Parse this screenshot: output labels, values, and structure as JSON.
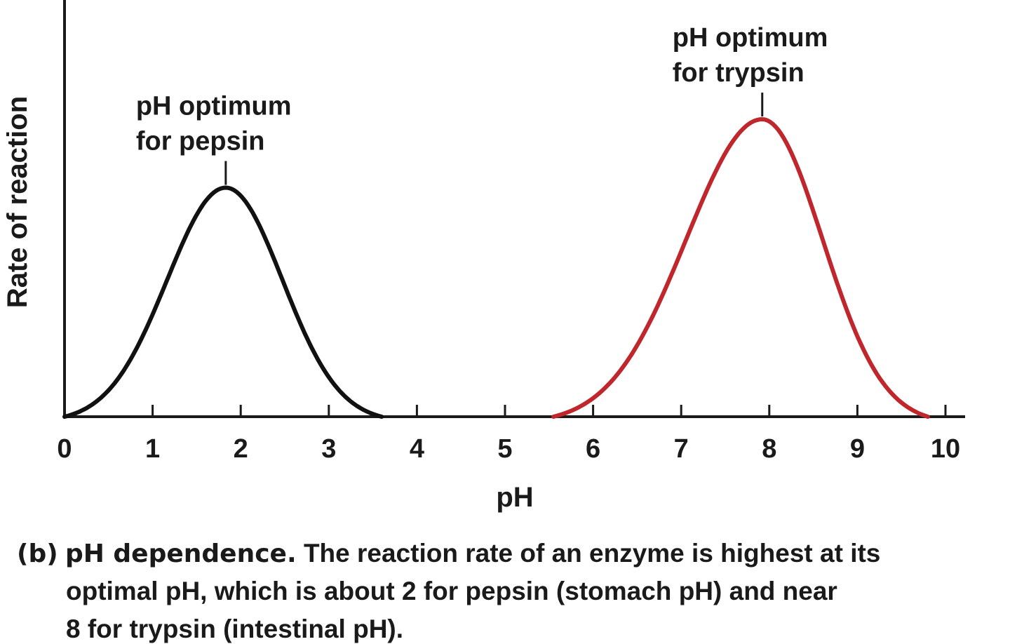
{
  "chart_data": {
    "type": "line",
    "title": "",
    "xlabel": "pH",
    "ylabel": "Rate of reaction",
    "xlim": [
      0,
      10
    ],
    "ylim": [
      0,
      1
    ],
    "xticks": [
      "0",
      "1",
      "2",
      "3",
      "4",
      "5",
      "6",
      "7",
      "8",
      "9",
      "10"
    ],
    "yticks": [],
    "grid": false,
    "series": [
      {
        "name": "pepsin",
        "color": "#111111",
        "optimum_ph": 1.83,
        "peak_rate": 0.77,
        "x_range": [
          0.0,
          3.6
        ],
        "x": [
          0.0,
          0.25,
          0.5,
          0.75,
          1.0,
          1.25,
          1.5,
          1.83,
          2.0,
          2.25,
          2.5,
          2.75,
          3.0,
          3.25,
          3.5,
          3.6
        ],
        "y": [
          0.0,
          0.03,
          0.1,
          0.23,
          0.39,
          0.56,
          0.7,
          0.77,
          0.75,
          0.67,
          0.53,
          0.35,
          0.19,
          0.07,
          0.01,
          0.0
        ]
      },
      {
        "name": "trypsin",
        "color": "#c0272d",
        "optimum_ph": 7.92,
        "peak_rate": 1.0,
        "x_range": [
          5.55,
          9.8
        ],
        "x": [
          5.55,
          6.0,
          6.5,
          7.0,
          7.5,
          7.92,
          8.25,
          8.5,
          8.75,
          9.0,
          9.25,
          9.5,
          9.8
        ],
        "y": [
          0.0,
          0.08,
          0.3,
          0.61,
          0.88,
          1.0,
          0.95,
          0.84,
          0.66,
          0.44,
          0.23,
          0.08,
          0.0
        ]
      }
    ],
    "annotations": [
      {
        "series": "pepsin",
        "lines": [
          "pH optimum",
          "for pepsin"
        ]
      },
      {
        "series": "trypsin",
        "lines": [
          "pH optimum",
          "for trypsin"
        ]
      }
    ]
  },
  "caption": {
    "label": "(b)",
    "heading": "pH dependence.",
    "line1_text": "The reaction rate of an enzyme is highest at its",
    "line2": "optimal pH, which is about 2 for pepsin (stomach pH) and near",
    "line3": "8 for trypsin (intestinal pH)."
  }
}
